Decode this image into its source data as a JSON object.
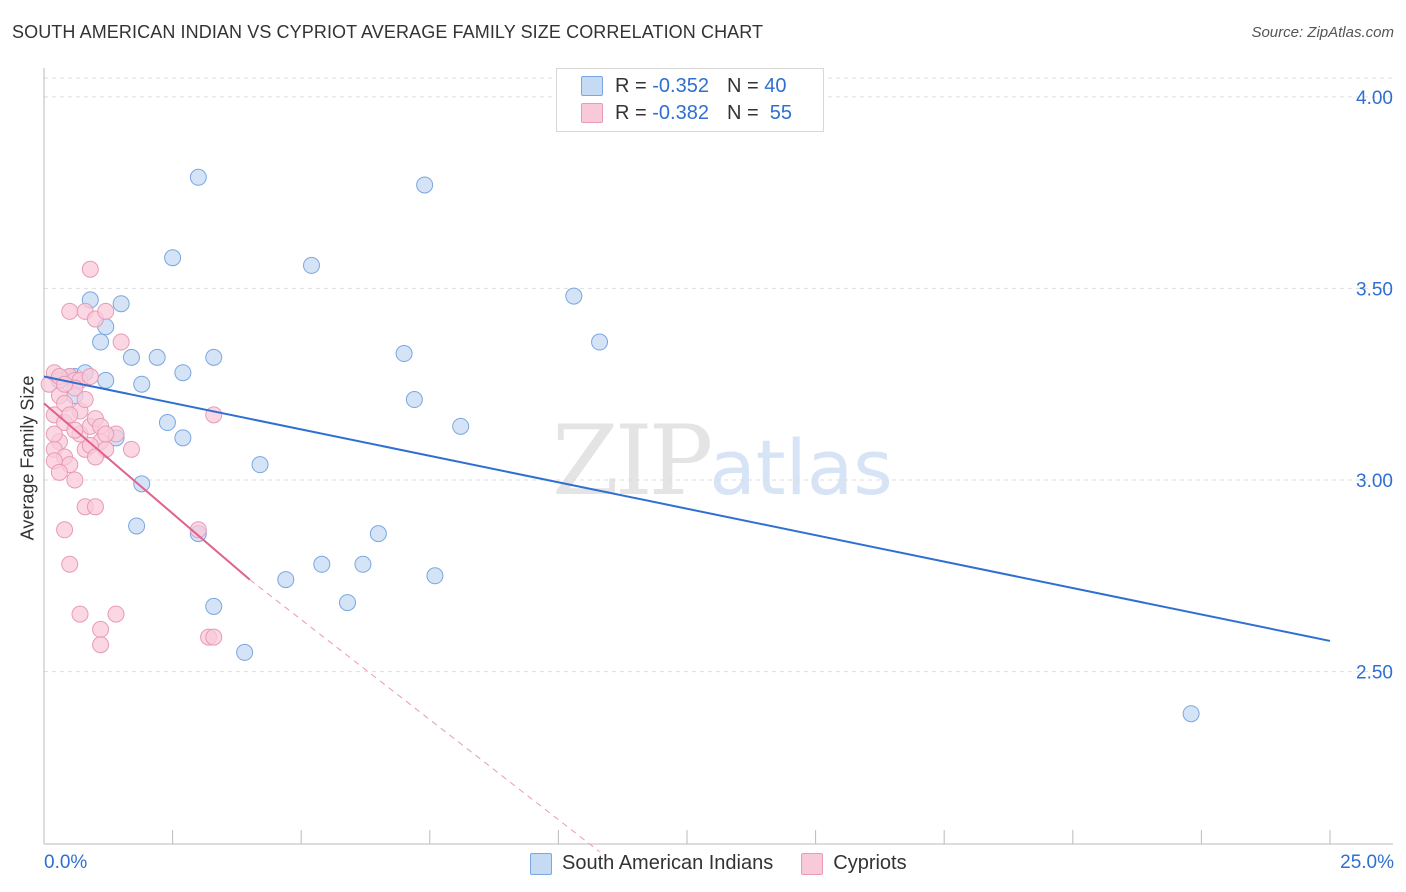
{
  "title": "SOUTH AMERICAN INDIAN VS CYPRIOT AVERAGE FAMILY SIZE CORRELATION CHART",
  "source": "Source: ZipAtlas.com",
  "watermark": {
    "zip": "ZIP",
    "atlas": "atlas"
  },
  "legend": {
    "r_label": "R =",
    "n_label": "N =",
    "series": [
      {
        "r": "-0.352",
        "n": "40"
      },
      {
        "r": "-0.382",
        "n": "55"
      }
    ]
  },
  "bottom_legend": [
    "South American Indians",
    "Cypriots"
  ],
  "chart_data": {
    "type": "scatter",
    "title": "SOUTH AMERICAN INDIAN VS CYPRIOT AVERAGE FAMILY SIZE CORRELATION CHART",
    "xlabel": "",
    "ylabel": "Average Family Size",
    "x_tick_labels": [
      "0.0%",
      "25.0%"
    ],
    "y_tick_labels": [
      "4.00",
      "3.50",
      "3.00",
      "2.50"
    ],
    "y_ticks": [
      4.0,
      3.5,
      3.0,
      2.5
    ],
    "xlim": [
      0,
      25
    ],
    "ylim": [
      2.05,
      4.07
    ],
    "colors": {
      "blue": "#2f6fd1",
      "blue_fill": "#c5daf3",
      "blue_stroke": "#7aa7e0",
      "pink": "#e0608e",
      "pink_fill": "#f8cad9",
      "pink_stroke": "#e99ab5"
    },
    "series": [
      {
        "name": "South American Indians",
        "color": "blue",
        "trend": {
          "x": [
            0,
            25
          ],
          "y": [
            3.27,
            2.58
          ],
          "dashed_ext": null
        },
        "points": [
          [
            0.3,
            3.26
          ],
          [
            0.6,
            3.27
          ],
          [
            0.9,
            3.47
          ],
          [
            1.1,
            3.36
          ],
          [
            1.2,
            3.4
          ],
          [
            1.5,
            3.46
          ],
          [
            1.2,
            3.26
          ],
          [
            1.7,
            3.32
          ],
          [
            1.9,
            3.25
          ],
          [
            2.2,
            3.32
          ],
          [
            2.5,
            3.58
          ],
          [
            3.0,
            3.79
          ],
          [
            2.7,
            3.28
          ],
          [
            3.3,
            3.32
          ],
          [
            2.4,
            3.15
          ],
          [
            2.7,
            3.11
          ],
          [
            1.4,
            3.11
          ],
          [
            1.9,
            2.99
          ],
          [
            1.8,
            2.88
          ],
          [
            3.0,
            2.86
          ],
          [
            3.3,
            2.67
          ],
          [
            3.9,
            2.55
          ],
          [
            4.2,
            3.04
          ],
          [
            4.7,
            2.74
          ],
          [
            5.2,
            3.56
          ],
          [
            5.4,
            2.78
          ],
          [
            5.9,
            2.68
          ],
          [
            6.2,
            2.78
          ],
          [
            6.5,
            2.86
          ],
          [
            7.0,
            3.33
          ],
          [
            7.2,
            3.21
          ],
          [
            7.4,
            3.77
          ],
          [
            7.6,
            2.75
          ],
          [
            8.1,
            3.14
          ],
          [
            10.3,
            3.48
          ],
          [
            10.8,
            3.36
          ],
          [
            22.3,
            2.39
          ],
          [
            0.5,
            3.27
          ],
          [
            0.8,
            3.28
          ],
          [
            0.6,
            3.22
          ]
        ]
      },
      {
        "name": "Cypriots",
        "color": "pink",
        "trend": {
          "x": [
            0,
            4.0
          ],
          "y": [
            3.2,
            2.74
          ],
          "dashed_ext": {
            "x": [
              4.0,
              10.8
            ],
            "y": [
              2.74,
              2.03
            ]
          }
        },
        "points": [
          [
            0.1,
            3.25
          ],
          [
            0.2,
            3.28
          ],
          [
            0.3,
            3.22
          ],
          [
            0.2,
            3.17
          ],
          [
            0.4,
            3.15
          ],
          [
            0.5,
            3.27
          ],
          [
            0.6,
            3.26
          ],
          [
            0.3,
            3.1
          ],
          [
            0.2,
            3.08
          ],
          [
            0.4,
            3.06
          ],
          [
            0.5,
            3.04
          ],
          [
            0.7,
            3.12
          ],
          [
            0.8,
            3.08
          ],
          [
            0.6,
            3.0
          ],
          [
            0.9,
            3.14
          ],
          [
            1.0,
            3.16
          ],
          [
            1.1,
            3.1
          ],
          [
            1.2,
            3.08
          ],
          [
            0.7,
            3.26
          ],
          [
            0.5,
            3.44
          ],
          [
            0.8,
            3.44
          ],
          [
            0.9,
            3.55
          ],
          [
            1.0,
            3.42
          ],
          [
            1.2,
            3.44
          ],
          [
            1.5,
            3.36
          ],
          [
            0.9,
            3.27
          ],
          [
            0.4,
            2.87
          ],
          [
            0.8,
            2.93
          ],
          [
            1.0,
            2.93
          ],
          [
            0.5,
            2.78
          ],
          [
            0.7,
            2.65
          ],
          [
            1.4,
            2.65
          ],
          [
            1.1,
            2.61
          ],
          [
            1.1,
            2.57
          ],
          [
            3.0,
            2.87
          ],
          [
            3.2,
            2.59
          ],
          [
            3.3,
            2.59
          ],
          [
            3.3,
            3.17
          ],
          [
            1.7,
            3.08
          ],
          [
            1.4,
            3.12
          ],
          [
            0.2,
            3.05
          ],
          [
            0.3,
            3.02
          ],
          [
            0.6,
            3.13
          ],
          [
            0.4,
            3.2
          ],
          [
            0.7,
            3.18
          ],
          [
            0.9,
            3.09
          ],
          [
            1.1,
            3.14
          ],
          [
            0.3,
            3.27
          ],
          [
            0.6,
            3.24
          ],
          [
            0.8,
            3.21
          ],
          [
            0.5,
            3.17
          ],
          [
            1.2,
            3.12
          ],
          [
            0.4,
            3.25
          ],
          [
            0.2,
            3.12
          ],
          [
            1.0,
            3.06
          ]
        ]
      }
    ]
  }
}
